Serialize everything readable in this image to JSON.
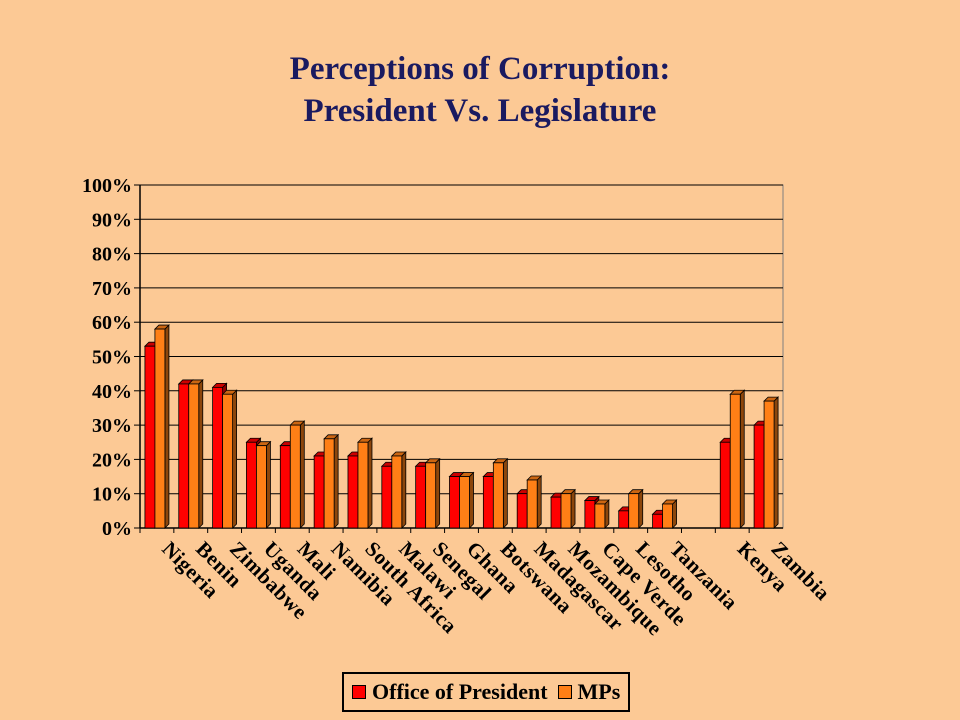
{
  "chart_data": {
    "type": "bar",
    "title_line1": "Perceptions of Corruption:",
    "title_line2": "President Vs. Legislature",
    "categories": [
      "Nigeria",
      "Benin",
      "Zimbabwe",
      "Uganda",
      "Mali",
      "Namibia",
      "South Africa",
      "Malawi",
      "Senegal",
      "Ghana",
      "Botswana",
      "Madagascar",
      "Mozambique",
      "Cape Verde",
      "Lesotho",
      "Tanzania",
      "",
      "Kenya",
      "Zambia"
    ],
    "series": [
      {
        "name": "Office of President",
        "color": "#ff0000",
        "values": [
          53,
          42,
          41,
          25,
          24,
          21,
          21,
          18,
          18,
          15,
          15,
          10,
          9,
          8,
          5,
          4,
          null,
          25,
          30
        ]
      },
      {
        "name": "MPs",
        "color": "#ff7f16",
        "values": [
          58,
          42,
          39,
          24,
          30,
          26,
          25,
          21,
          19,
          15,
          19,
          14,
          10,
          7,
          10,
          7,
          null,
          39,
          37
        ]
      }
    ],
    "ylim": [
      0,
      100
    ],
    "yticks": [
      "0%",
      "10%",
      "20%",
      "30%",
      "40%",
      "50%",
      "60%",
      "70%",
      "80%",
      "90%",
      "100%"
    ],
    "grid": true,
    "legend_position": "bottom"
  }
}
